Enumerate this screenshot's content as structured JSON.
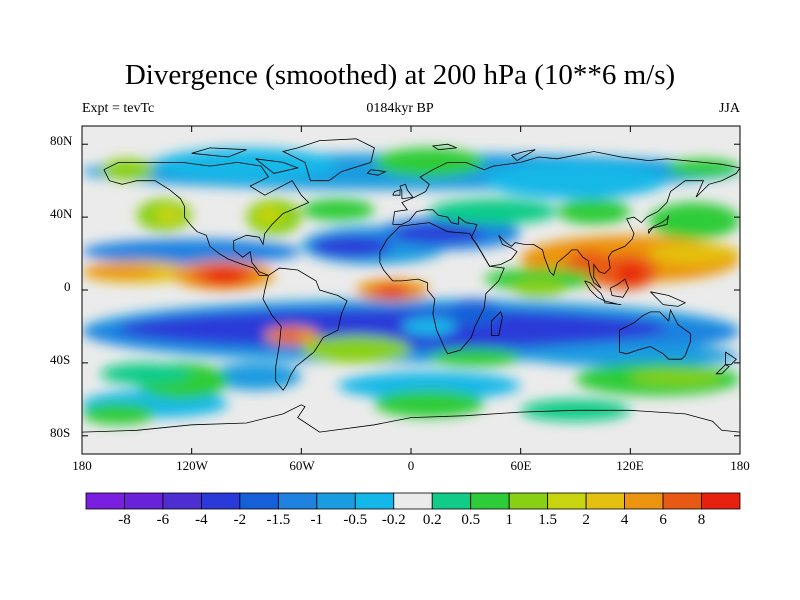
{
  "chart_data": {
    "type": "heatmap",
    "title": "Divergence (smoothed) at 200 hPa (10**6 m/s)",
    "subtitle_left": "Expt = tevTc",
    "subtitle_center": "0184kyr BP",
    "subtitle_right": "JJA",
    "y_ticks": [
      "80N",
      "40N",
      "0",
      "40S",
      "80S"
    ],
    "y_tick_values": [
      80,
      40,
      0,
      -40,
      -80
    ],
    "x_ticks": [
      "180",
      "120W",
      "60W",
      "0",
      "60E",
      "120E",
      "180"
    ],
    "x_tick_values": [
      -180,
      -120,
      -60,
      0,
      60,
      120,
      180
    ],
    "xlim": [
      -180,
      180
    ],
    "ylim": [
      -90,
      90
    ],
    "colorbar": {
      "labels": [
        "-8",
        "-6",
        "-4",
        "-2",
        "-1.5",
        "-1",
        "-0.5",
        "-0.2",
        "0.2",
        "0.5",
        "1",
        "1.5",
        "2",
        "4",
        "6",
        "8"
      ],
      "colors": [
        "#7a1fe0",
        "#6a22d8",
        "#4d2ed0",
        "#2a3ad8",
        "#1560d8",
        "#1f82e0",
        "#1a9ce0",
        "#14b8e8",
        "#ebebeb",
        "#10cc88",
        "#2ecc38",
        "#88d014",
        "#c8d410",
        "#e4c010",
        "#ec9410",
        "#e85a14",
        "#e82010"
      ]
    },
    "features": [
      {
        "lon": -100,
        "lat": 8,
        "value": 8
      },
      {
        "lon": -10,
        "lat": -2,
        "value": 6
      },
      {
        "lon": 100,
        "lat": 12,
        "value": 6
      },
      {
        "lon": 120,
        "lat": 8,
        "value": 6
      },
      {
        "lon": -160,
        "lat": 10,
        "value": 4
      },
      {
        "lon": 160,
        "lat": 18,
        "value": 2
      },
      {
        "lon": -130,
        "lat": 40,
        "value": 1.5
      },
      {
        "lon": -80,
        "lat": 40,
        "value": 1.5
      },
      {
        "lon": -30,
        "lat": -15,
        "value": -4
      },
      {
        "lon": 60,
        "lat": -15,
        "value": -4
      },
      {
        "lon": 130,
        "lat": -30,
        "value": -2
      },
      {
        "lon": -100,
        "lat": -20,
        "value": -2
      },
      {
        "lon": -60,
        "lat": 20,
        "value": -2
      },
      {
        "lon": 40,
        "lat": 30,
        "value": -1
      },
      {
        "lon": 150,
        "lat": -55,
        "value": 1
      },
      {
        "lon": -120,
        "lat": -45,
        "value": 1
      }
    ]
  }
}
